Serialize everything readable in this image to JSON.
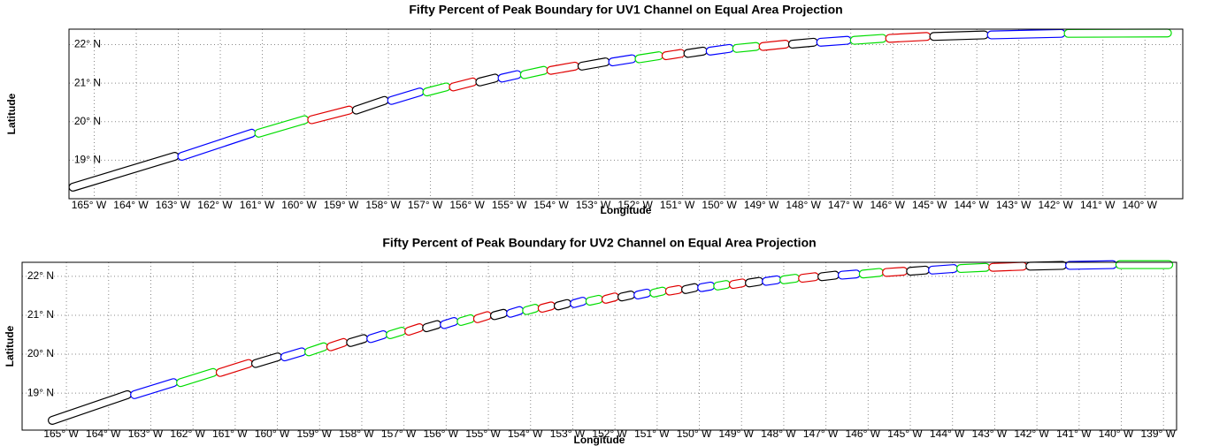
{
  "chart_data": [
    {
      "type": "footprint",
      "title": "Fifty Percent of Peak Boundary for UV1 Channel on Equal Area Projection",
      "xlabel": "Longitude",
      "ylabel": "Latitude",
      "xlim": [
        -165.6,
        -139.1
      ],
      "ylim": [
        18.0,
        22.4
      ],
      "xticks": [
        {
          "value": -165,
          "label": "165° W"
        },
        {
          "value": -164,
          "label": "164° W"
        },
        {
          "value": -163,
          "label": "163° W"
        },
        {
          "value": -162,
          "label": "162° W"
        },
        {
          "value": -161,
          "label": "161° W"
        },
        {
          "value": -160,
          "label": "160° W"
        },
        {
          "value": -159,
          "label": "159° W"
        },
        {
          "value": -158,
          "label": "158° W"
        },
        {
          "value": -157,
          "label": "157° W"
        },
        {
          "value": -156,
          "label": "156° W"
        },
        {
          "value": -155,
          "label": "155° W"
        },
        {
          "value": -154,
          "label": "154° W"
        },
        {
          "value": -153,
          "label": "153° W"
        },
        {
          "value": -152,
          "label": "152° W"
        },
        {
          "value": -151,
          "label": "151° W"
        },
        {
          "value": -150,
          "label": "150° W"
        },
        {
          "value": -149,
          "label": "149° W"
        },
        {
          "value": -148,
          "label": "148° W"
        },
        {
          "value": -147,
          "label": "147° W"
        },
        {
          "value": -146,
          "label": "146° W"
        },
        {
          "value": -145,
          "label": "145° W"
        },
        {
          "value": -144,
          "label": "144° W"
        },
        {
          "value": -143,
          "label": "143° W"
        },
        {
          "value": -142,
          "label": "142° W"
        },
        {
          "value": -141,
          "label": "141° W"
        },
        {
          "value": -140,
          "label": "140° W"
        }
      ],
      "yticks": [
        {
          "value": 19,
          "label": "19° N"
        },
        {
          "value": 20,
          "label": "20° N"
        },
        {
          "value": 21,
          "label": "21° N"
        },
        {
          "value": 22,
          "label": "22° N"
        }
      ],
      "grid": true,
      "color_cycle": [
        "#000000",
        "#0000ff",
        "#00dd00",
        "#e00000"
      ],
      "lon": [
        -165.59,
        -163.0,
        -161.17,
        -159.91,
        -158.85,
        -158.01,
        -157.17,
        -156.54,
        -155.91,
        -155.38,
        -154.85,
        -154.22,
        -153.48,
        -152.75,
        -152.12,
        -151.48,
        -150.96,
        -150.43,
        -149.8,
        -149.17,
        -148.47,
        -147.8,
        -147.0,
        -146.16,
        -145.11,
        -143.74,
        -141.91,
        -139.38
      ],
      "lat": [
        18.3,
        19.1,
        19.7,
        20.05,
        20.3,
        20.55,
        20.77,
        20.9,
        21.03,
        21.13,
        21.22,
        21.33,
        21.44,
        21.55,
        21.63,
        21.71,
        21.77,
        21.83,
        21.9,
        21.95,
        22.01,
        22.06,
        22.11,
        22.16,
        22.21,
        22.25,
        22.29,
        22.3
      ]
    },
    {
      "type": "footprint",
      "title": "Fifty Percent of Peak Boundary for UV2 Channel on Equal Area Projection",
      "xlabel": "Longitude",
      "ylabel": "Latitude",
      "xlim": [
        -166.05,
        -138.69
      ],
      "ylim": [
        18.05,
        22.36
      ],
      "xticks": [
        {
          "value": -165,
          "label": "165° W"
        },
        {
          "value": -164,
          "label": "164° W"
        },
        {
          "value": -163,
          "label": "163° W"
        },
        {
          "value": -162,
          "label": "162° W"
        },
        {
          "value": -161,
          "label": "161° W"
        },
        {
          "value": -160,
          "label": "160° W"
        },
        {
          "value": -159,
          "label": "159° W"
        },
        {
          "value": -158,
          "label": "158° W"
        },
        {
          "value": -157,
          "label": "157° W"
        },
        {
          "value": -156,
          "label": "156° W"
        },
        {
          "value": -155,
          "label": "155° W"
        },
        {
          "value": -154,
          "label": "154° W"
        },
        {
          "value": -153,
          "label": "153° W"
        },
        {
          "value": -152,
          "label": "152° W"
        },
        {
          "value": -151,
          "label": "151° W"
        },
        {
          "value": -150,
          "label": "150° W"
        },
        {
          "value": -149,
          "label": "149° W"
        },
        {
          "value": -148,
          "label": "148° W"
        },
        {
          "value": -147,
          "label": "147° W"
        },
        {
          "value": -146,
          "label": "146° W"
        },
        {
          "value": -145,
          "label": "145° W"
        },
        {
          "value": -144,
          "label": "144° W"
        },
        {
          "value": -143,
          "label": "143° W"
        },
        {
          "value": -142,
          "label": "142° W"
        },
        {
          "value": -141,
          "label": "141° W"
        },
        {
          "value": -140,
          "label": "140° W"
        },
        {
          "value": -139,
          "label": "139° W"
        }
      ],
      "yticks": [
        {
          "value": 19,
          "label": "19° N"
        },
        {
          "value": 20,
          "label": "20° N"
        },
        {
          "value": 21,
          "label": "21° N"
        },
        {
          "value": 22,
          "label": "22° N"
        }
      ],
      "grid": true,
      "color_cycle": [
        "#000000",
        "#0000ff",
        "#00dd00",
        "#e00000"
      ],
      "lon": [
        -165.42,
        -163.47,
        -162.38,
        -161.44,
        -160.6,
        -159.91,
        -159.34,
        -158.82,
        -158.35,
        -157.87,
        -157.41,
        -156.97,
        -156.55,
        -156.13,
        -155.73,
        -155.34,
        -154.94,
        -154.56,
        -154.18,
        -153.81,
        -153.43,
        -153.05,
        -152.68,
        -152.3,
        -151.92,
        -151.54,
        -151.16,
        -150.79,
        -150.41,
        -150.03,
        -149.65,
        -149.28,
        -148.9,
        -148.5,
        -148.08,
        -147.64,
        -147.18,
        -146.7,
        -146.2,
        -145.65,
        -145.08,
        -144.56,
        -143.89,
        -143.13,
        -142.25,
        -141.31,
        -140.12,
        -138.79
      ],
      "lat": [
        18.3,
        18.96,
        19.27,
        19.53,
        19.76,
        19.93,
        20.06,
        20.19,
        20.3,
        20.4,
        20.5,
        20.59,
        20.68,
        20.76,
        20.84,
        20.91,
        20.99,
        21.05,
        21.12,
        21.18,
        21.24,
        21.3,
        21.36,
        21.41,
        21.47,
        21.52,
        21.57,
        21.62,
        21.66,
        21.71,
        21.75,
        21.79,
        21.83,
        21.87,
        21.91,
        21.95,
        21.99,
        22.03,
        22.06,
        22.1,
        22.13,
        22.16,
        22.2,
        22.23,
        22.26,
        22.28,
        22.3,
        22.3
      ]
    }
  ]
}
